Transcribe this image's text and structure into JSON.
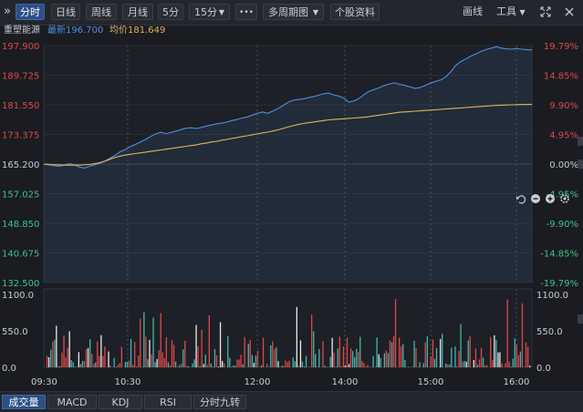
{
  "toolbar": {
    "expand_icon": "double-chevron-right-icon",
    "expand_glyph": "»",
    "tabs": [
      "分时",
      "日线",
      "周线",
      "月线",
      "5分"
    ],
    "period_select": "15分",
    "more_label": "•••",
    "multi_period": "多周期图",
    "stock_info": "个股资料",
    "draw_line": "画线",
    "tools": "工具",
    "fullscreen_icon": "expand-arrows-icon",
    "close_icon": "close-icon"
  },
  "info": {
    "name": "重塑能源",
    "latest_label": "最新",
    "latest_value": "196.700",
    "avg_label": "均价",
    "avg_value": "181.649"
  },
  "right_icons": [
    "undo-icon",
    "zoom-out-icon",
    "zoom-in-icon",
    "settings-icon"
  ],
  "price_axis": {
    "left_labels": [
      "197.900",
      "189.725",
      "181.550",
      "173.375",
      "165.200",
      "157.025",
      "148.850",
      "140.675",
      "132.500"
    ],
    "right_labels": [
      "19.79%",
      "14.85%",
      "9.90%",
      "4.95%",
      "0.00%",
      "-4.95%",
      "-9.90%",
      "-14.85%",
      "-19.79%"
    ],
    "ylim": [
      132.5,
      197.9
    ],
    "prev_close": 165.2
  },
  "volume_axis": {
    "labels": [
      "1100.0",
      "550.0",
      "0.0"
    ],
    "ylim": [
      0,
      1100
    ]
  },
  "time_labels": [
    "09:30",
    "10:30",
    "12:00",
    "14:00",
    "15:00",
    "16:00"
  ],
  "tabs_bottom": [
    "成交量",
    "MACD",
    "KDJ",
    "RSI",
    "分时九转"
  ],
  "colors": {
    "price_line": "#4d8fe0",
    "avg_line": "#e0b25c",
    "up": "#e04848",
    "down": "#3fb8b0",
    "neutral": "#e8e8e8",
    "accent": "#2e4f86"
  },
  "chart_data": {
    "type": "line",
    "x_start": "09:30",
    "x_end": "16:00",
    "price": [
      165.2,
      165.0,
      164.8,
      164.6,
      164.9,
      165.3,
      165.0,
      164.4,
      164.1,
      164.6,
      165.0,
      165.4,
      166.0,
      166.8,
      167.6,
      168.6,
      169.2,
      170.0,
      170.6,
      171.3,
      172.0,
      172.8,
      173.5,
      174.0,
      173.6,
      173.9,
      174.3,
      174.7,
      175.1,
      175.2,
      175.0,
      175.3,
      175.7,
      176.0,
      176.3,
      176.5,
      176.8,
      177.2,
      177.5,
      177.9,
      178.2,
      178.7,
      179.2,
      179.6,
      179.2,
      179.8,
      180.5,
      181.3,
      182.2,
      182.8,
      183.0,
      183.2,
      183.5,
      183.8,
      184.2,
      184.6,
      184.8,
      184.3,
      184.0,
      183.4,
      182.3,
      182.6,
      183.3,
      184.4,
      185.3,
      185.8,
      186.3,
      186.9,
      187.3,
      187.6,
      187.2,
      186.9,
      186.5,
      186.1,
      186.3,
      186.9,
      187.5,
      188.0,
      188.4,
      189.2,
      190.6,
      192.4,
      193.5,
      194.2,
      195.0,
      195.6,
      196.3,
      196.8,
      197.2,
      197.6,
      197.2,
      197.0,
      196.9,
      197.1,
      196.9,
      196.8,
      196.7
    ],
    "avg": [
      165.2,
      165.1,
      165.0,
      165.0,
      164.9,
      164.9,
      164.9,
      164.9,
      165.0,
      165.1,
      165.3,
      165.6,
      166.0,
      166.5,
      167.0,
      167.4,
      167.7,
      167.9,
      168.1,
      168.3,
      168.5,
      168.7,
      168.9,
      169.1,
      169.3,
      169.5,
      169.7,
      169.9,
      170.1,
      170.3,
      170.5,
      170.8,
      171.0,
      171.3,
      171.5,
      171.8,
      172.0,
      172.3,
      172.5,
      172.8,
      173.0,
      173.3,
      173.5,
      173.8,
      174.0,
      174.3,
      174.6,
      175.0,
      175.4,
      175.8,
      176.1,
      176.4,
      176.6,
      176.8,
      177.0,
      177.2,
      177.4,
      177.5,
      177.6,
      177.7,
      177.8,
      177.9,
      178.0,
      178.1,
      178.3,
      178.5,
      178.7,
      178.9,
      179.1,
      179.3,
      179.5,
      179.6,
      179.7,
      179.8,
      179.9,
      180.0,
      180.1,
      180.2,
      180.3,
      180.4,
      180.5,
      180.6,
      180.7,
      180.8,
      180.9,
      181.0,
      181.1,
      181.2,
      181.3,
      181.4,
      181.45,
      181.5,
      181.55,
      181.6,
      181.62,
      181.64,
      181.649
    ]
  }
}
